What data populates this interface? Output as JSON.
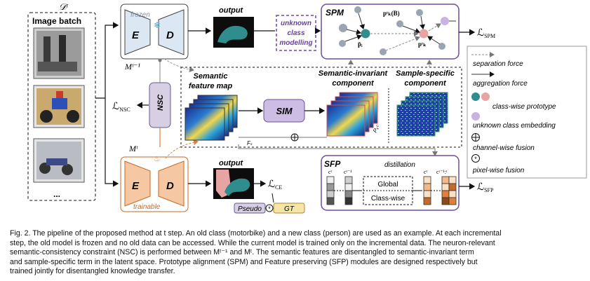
{
  "figure": {
    "dataset_label": "𝒟ᵗ",
    "image_batch": "Image batch",
    "ellipsis": "...",
    "frozen": "frozen",
    "trainable": "trainable",
    "encoder": "E",
    "decoder": "D",
    "output_top": "output",
    "output_bottom": "output",
    "model_old": "Mᵗ⁻¹",
    "model_new": "Mᵗ",
    "nsc": "NSC",
    "loss_nsc": "ℒ",
    "loss_nsc_sub": "NSC",
    "unknown_class": [
      "unknown",
      "class",
      "modelling"
    ],
    "spm": "SPM",
    "loss_spm": "ℒ",
    "loss_spm_sub": "SPM",
    "spm_labels": {
      "pk_b": "pᵗₖ(B)",
      "pi_bar": "p̄ᵢ",
      "pi": "pᵗᵢ",
      "pk": "pᵗₖ"
    },
    "semantic_feature_map": [
      "Semantic",
      "feature map"
    ],
    "semantic_invariant": [
      "Semantic-invariant",
      "component"
    ],
    "sample_specific": [
      "Sample-specific",
      "component"
    ],
    "sim": "SIM",
    "sfp": "SFP",
    "distillation": "distillation",
    "global": "Global",
    "class_wise": "Class-wise",
    "c_t": "cᵗ",
    "c_t_minus_1": "cᵗ⁻¹",
    "c_range": "cᵗ⁻¹:ᵗ",
    "loss_sfp": "ℒ",
    "loss_sfp_sub": "SFP",
    "loss_ce": "ℒ",
    "loss_ce_sub": "CE",
    "pseudo": "Pseudo",
    "gt": "GT",
    "fs_label": "Fₛ",
    "psc_label": "Pₛᶜ",
    "colors": {
      "frozen_fill": "#dbe7f3",
      "trainable_fill": "#f6c7a3",
      "nsc_fill": "#d7cfe4",
      "sim_fill": "#cdbde4",
      "prototype_teal": "#2f8d8e",
      "prototype_pink": "#e8a3a3",
      "unknown_purple": "#c9b3e0",
      "orange_arrow": "#e0803a"
    }
  },
  "legend": [
    {
      "label": "separation force"
    },
    {
      "label": "aggregation force"
    },
    {
      "label": "class-wise prototype"
    },
    {
      "label": "unknown class embedding"
    },
    {
      "label": "channel-wise fusion"
    },
    {
      "label": "pixel-wise fusion"
    }
  ],
  "caption": {
    "lines": [
      "Fig. 2. The pipeline of the proposed method at t step. An old class (motorbike) and a new class (person) are used as an example. At each incremental",
      "step, the old model is frozen and no old data can be accessed. While the current model is trained only on the incremental data. The neuron-relevant",
      "semantic-consistency constraint (NSC) is performed between Mᵗ⁻¹ and Mᵗ. The semantic features are disentangled to semantic-invariant term",
      "and sample-specific term in the latent space. Prototype alignment (SPM) and Feature preserving (SFP) modules are designed respectively but",
      "trained jointly for disentangled knowledge transfer."
    ]
  }
}
